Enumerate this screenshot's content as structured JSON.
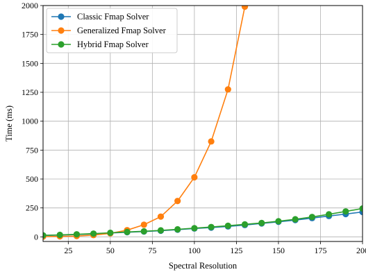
{
  "chart_data": {
    "type": "line",
    "xlabel": "Spectral Resolution",
    "ylabel": "Time (ms)",
    "xlim": [
      10,
      200
    ],
    "ylim": [
      -40,
      2000
    ],
    "xticks": [
      25,
      50,
      75,
      100,
      125,
      150,
      175,
      200
    ],
    "yticks": [
      0,
      250,
      500,
      750,
      1000,
      1250,
      1500,
      1750,
      2000
    ],
    "grid": true,
    "legend_position": "top-left",
    "x": [
      10,
      20,
      30,
      40,
      50,
      60,
      70,
      80,
      90,
      100,
      110,
      120,
      130,
      140,
      150,
      160,
      170,
      180,
      190,
      200
    ],
    "series": [
      {
        "name": "Classic Fmap Solver",
        "color": "#1f77b4",
        "values": [
          12,
          15,
          20,
          26,
          33,
          40,
          46,
          53,
          62,
          72,
          80,
          90,
          102,
          116,
          130,
          145,
          162,
          180,
          197,
          215
        ]
      },
      {
        "name": "Generalized Fmap Solver",
        "color": "#ff7f0e",
        "values": [
          2,
          4,
          7,
          15,
          30,
          58,
          105,
          175,
          310,
          515,
          825,
          1275,
          1990,
          null,
          null,
          null,
          null,
          null,
          null,
          null
        ]
      },
      {
        "name": "Hybrid Fmap Solver",
        "color": "#2ca02c",
        "values": [
          13,
          17,
          22,
          28,
          35,
          42,
          48,
          56,
          65,
          75,
          85,
          96,
          108,
          120,
          135,
          152,
          172,
          195,
          220,
          245
        ]
      }
    ]
  }
}
